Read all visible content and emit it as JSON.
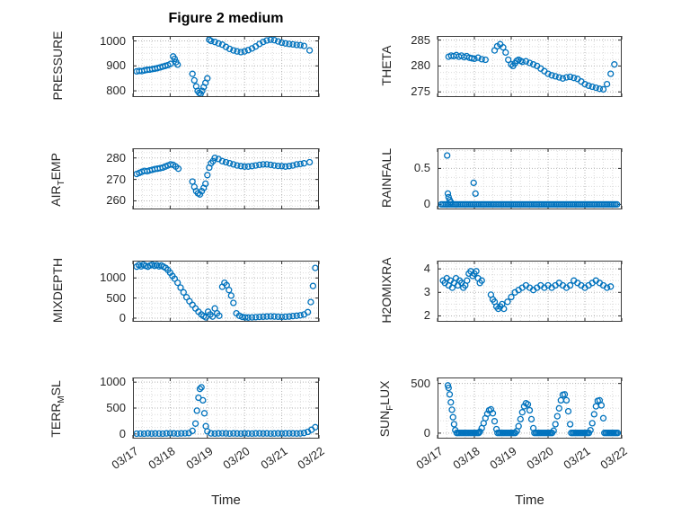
{
  "figure": {
    "title": "Figure 2 medium",
    "marker_color": "#0072BD"
  },
  "x_axis": {
    "label": "Time",
    "ticks": [
      "03/17",
      "03/18",
      "03/19",
      "03/20",
      "03/21",
      "03/22"
    ],
    "tick_values": [
      0,
      1,
      2,
      3,
      4,
      5
    ],
    "range": [
      0,
      5
    ]
  },
  "chart_data": [
    {
      "type": "scatter",
      "name": "pressure",
      "ylabel": "PRESSURE",
      "row": 0,
      "col": 0,
      "ylim": [
        775,
        1020
      ],
      "yticks": [
        800,
        900,
        1000
      ],
      "x": [
        0.1,
        0.17,
        0.24,
        0.31,
        0.38,
        0.45,
        0.52,
        0.59,
        0.66,
        0.73,
        0.8,
        0.87,
        0.94,
        1.01,
        1.08,
        1.12,
        1.16,
        1.2,
        1.6,
        1.65,
        1.7,
        1.74,
        1.78,
        1.82,
        1.86,
        1.9,
        1.95,
        2.0,
        2.05,
        2.1,
        2.2,
        2.3,
        2.4,
        2.5,
        2.6,
        2.7,
        2.8,
        2.9,
        3.0,
        3.1,
        3.2,
        3.3,
        3.4,
        3.5,
        3.6,
        3.7,
        3.8,
        3.9,
        4.0,
        4.1,
        4.2,
        4.3,
        4.4,
        4.5,
        4.6,
        4.75
      ],
      "y": [
        878,
        880,
        879,
        882,
        884,
        885,
        887,
        889,
        891,
        894,
        897,
        900,
        903,
        908,
        938,
        928,
        915,
        905,
        868,
        842,
        818,
        800,
        792,
        788,
        800,
        815,
        832,
        850,
        1005,
        1000,
        996,
        990,
        985,
        976,
        968,
        962,
        958,
        955,
        958,
        963,
        970,
        978,
        988,
        996,
        1002,
        1005,
        1003,
        998,
        993,
        990,
        988,
        986,
        984,
        983,
        980,
        962
      ]
    },
    {
      "type": "scatter",
      "name": "theta",
      "ylabel": "THETA",
      "row": 0,
      "col": 1,
      "ylim": [
        274,
        285.8
      ],
      "yticks": [
        275,
        280,
        285
      ],
      "x": [
        0.3,
        0.37,
        0.44,
        0.51,
        0.58,
        0.65,
        0.72,
        0.79,
        0.86,
        0.93,
        1.0,
        1.1,
        1.2,
        1.3,
        1.55,
        1.62,
        1.7,
        1.78,
        1.85,
        1.92,
        2.0,
        2.05,
        2.1,
        2.15,
        2.2,
        2.25,
        2.3,
        2.4,
        2.5,
        2.6,
        2.7,
        2.8,
        2.9,
        3.0,
        3.1,
        3.2,
        3.3,
        3.4,
        3.5,
        3.6,
        3.7,
        3.8,
        3.9,
        4.0,
        4.1,
        4.2,
        4.3,
        4.4,
        4.5,
        4.6,
        4.7,
        4.8
      ],
      "y": [
        281.8,
        282.0,
        281.9,
        282.1,
        281.8,
        282.0,
        281.7,
        281.9,
        281.6,
        281.5,
        281.4,
        281.6,
        281.3,
        281.2,
        283.0,
        283.8,
        284.2,
        283.6,
        282.6,
        281.2,
        280.3,
        280.0,
        280.5,
        281.0,
        281.2,
        281.0,
        280.8,
        280.9,
        280.6,
        280.3,
        280.0,
        279.5,
        279.0,
        278.5,
        278.2,
        278.0,
        277.8,
        277.6,
        277.8,
        277.9,
        277.7,
        277.5,
        277.0,
        276.5,
        276.2,
        276.0,
        275.8,
        275.6,
        275.5,
        276.5,
        278.5,
        280.3
      ]
    },
    {
      "type": "scatter",
      "name": "air_temp",
      "ylabel": "AIR_TEMP",
      "row": 1,
      "col": 0,
      "ylim": [
        256,
        284.5
      ],
      "yticks": [
        260,
        270,
        280
      ],
      "x": [
        0.1,
        0.17,
        0.24,
        0.31,
        0.38,
        0.45,
        0.52,
        0.59,
        0.66,
        0.73,
        0.8,
        0.87,
        0.94,
        1.01,
        1.08,
        1.15,
        1.22,
        1.6,
        1.65,
        1.7,
        1.75,
        1.8,
        1.85,
        1.9,
        1.95,
        2.0,
        2.05,
        2.1,
        2.15,
        2.2,
        2.3,
        2.4,
        2.5,
        2.6,
        2.7,
        2.8,
        2.9,
        3.0,
        3.1,
        3.2,
        3.3,
        3.4,
        3.5,
        3.6,
        3.7,
        3.8,
        3.9,
        4.0,
        4.1,
        4.2,
        4.3,
        4.4,
        4.5,
        4.6,
        4.75
      ],
      "y": [
        272.5,
        273.0,
        273.5,
        274.0,
        273.8,
        274.2,
        274.5,
        274.8,
        275.0,
        275.2,
        275.5,
        276.0,
        276.5,
        277.0,
        276.8,
        276.0,
        275.0,
        269.0,
        266.5,
        264.5,
        263.5,
        263.0,
        264.5,
        266.0,
        268.0,
        272.0,
        275.5,
        277.5,
        278.5,
        280.0,
        279.5,
        278.5,
        278.0,
        277.5,
        277.0,
        276.5,
        276.2,
        276.0,
        276.0,
        276.2,
        276.5,
        276.8,
        277.0,
        277.0,
        276.8,
        276.5,
        276.3,
        276.2,
        276.0,
        276.2,
        276.5,
        277.0,
        277.2,
        277.5,
        278.0
      ]
    },
    {
      "type": "scatter",
      "name": "rainfall",
      "ylabel": "RAINFALL",
      "row": 1,
      "col": 1,
      "ylim": [
        -0.07,
        0.78
      ],
      "yticks": [
        0,
        0.5
      ],
      "x": [
        0.26,
        0.28,
        0.3,
        0.33,
        0.36,
        0.98,
        1.03
      ],
      "y": [
        0.68,
        0.15,
        0.1,
        0.06,
        0.03,
        0.3,
        0.15
      ],
      "runs": [
        {
          "start": 0.1,
          "end": 4.9,
          "step": 0.045,
          "value": 0
        }
      ]
    },
    {
      "type": "scatter",
      "name": "mixdepth",
      "ylabel": "MIXDEPTH",
      "row": 2,
      "col": 0,
      "ylim": [
        -90,
        1430
      ],
      "yticks": [
        0,
        500,
        1000
      ],
      "x": [
        0.1,
        0.16,
        0.22,
        0.28,
        0.34,
        0.4,
        0.46,
        0.52,
        0.58,
        0.64,
        0.7,
        0.76,
        0.82,
        0.88,
        0.94,
        1.0,
        1.06,
        1.12,
        1.2,
        1.28,
        1.36,
        1.44,
        1.52,
        1.6,
        1.68,
        1.76,
        1.84,
        1.9,
        1.96,
        2.02,
        2.08,
        2.14,
        2.2,
        2.26,
        2.32,
        2.4,
        2.46,
        2.52,
        2.58,
        2.64,
        2.7,
        2.78,
        2.86,
        2.94,
        3.02,
        3.1,
        3.2,
        3.3,
        3.4,
        3.5,
        3.6,
        3.7,
        3.8,
        3.9,
        4.0,
        4.1,
        4.2,
        4.3,
        4.4,
        4.5,
        4.6,
        4.7,
        4.78,
        4.84,
        4.9
      ],
      "y": [
        1280,
        1320,
        1290,
        1330,
        1300,
        1280,
        1310,
        1330,
        1300,
        1320,
        1290,
        1310,
        1280,
        1250,
        1200,
        1130,
        1050,
        980,
        880,
        760,
        640,
        520,
        420,
        330,
        240,
        160,
        90,
        50,
        20,
        160,
        90,
        40,
        240,
        120,
        60,
        780,
        880,
        820,
        700,
        560,
        380,
        120,
        60,
        30,
        20,
        15,
        20,
        25,
        30,
        35,
        40,
        45,
        40,
        35,
        30,
        35,
        40,
        50,
        60,
        70,
        90,
        150,
        400,
        800,
        1250
      ]
    },
    {
      "type": "scatter",
      "name": "h2omixra",
      "ylabel": "H2OMIXRA",
      "row": 2,
      "col": 1,
      "ylim": [
        1.75,
        4.35
      ],
      "yticks": [
        2,
        3,
        4
      ],
      "x": [
        0.15,
        0.2,
        0.25,
        0.3,
        0.35,
        0.4,
        0.45,
        0.5,
        0.55,
        0.6,
        0.65,
        0.7,
        0.75,
        0.8,
        0.85,
        0.9,
        0.95,
        1.0,
        1.05,
        1.1,
        1.15,
        1.2,
        1.45,
        1.5,
        1.55,
        1.6,
        1.65,
        1.7,
        1.75,
        1.8,
        1.9,
        2.0,
        2.1,
        2.2,
        2.3,
        2.4,
        2.5,
        2.6,
        2.7,
        2.8,
        2.9,
        3.0,
        3.1,
        3.2,
        3.3,
        3.4,
        3.5,
        3.6,
        3.7,
        3.8,
        3.9,
        4.0,
        4.1,
        4.2,
        4.3,
        4.4,
        4.5,
        4.6,
        4.7
      ],
      "y": [
        3.5,
        3.4,
        3.6,
        3.3,
        3.5,
        3.2,
        3.4,
        3.6,
        3.3,
        3.5,
        3.4,
        3.2,
        3.3,
        3.5,
        3.8,
        3.9,
        3.7,
        3.8,
        3.9,
        3.6,
        3.4,
        3.5,
        2.9,
        2.7,
        2.6,
        2.4,
        2.3,
        2.4,
        2.5,
        2.3,
        2.6,
        2.8,
        3.0,
        3.1,
        3.2,
        3.3,
        3.2,
        3.1,
        3.2,
        3.3,
        3.2,
        3.3,
        3.2,
        3.3,
        3.4,
        3.3,
        3.2,
        3.3,
        3.5,
        3.4,
        3.3,
        3.2,
        3.3,
        3.4,
        3.5,
        3.4,
        3.3,
        3.2,
        3.25
      ]
    },
    {
      "type": "scatter",
      "name": "terr_msl",
      "ylabel": "TERR_MSL",
      "row": 3,
      "col": 0,
      "ylim": [
        -90,
        1090
      ],
      "yticks": [
        0,
        500,
        1000
      ],
      "x": [
        0.1,
        0.2,
        0.3,
        0.4,
        0.5,
        0.6,
        0.7,
        0.8,
        0.9,
        1.0,
        1.1,
        1.2,
        1.3,
        1.4,
        1.5,
        1.6,
        1.68,
        1.72,
        1.76,
        1.8,
        1.84,
        1.88,
        1.92,
        1.96,
        2.0,
        2.1,
        2.2,
        2.3,
        2.4,
        2.5,
        2.6,
        2.7,
        2.8,
        2.9,
        3.0,
        3.1,
        3.2,
        3.3,
        3.4,
        3.5,
        3.6,
        3.7,
        3.8,
        3.9,
        4.0,
        4.1,
        4.2,
        4.3,
        4.4,
        4.5,
        4.6,
        4.7,
        4.8,
        4.9
      ],
      "y": [
        5,
        8,
        6,
        10,
        7,
        9,
        8,
        6,
        10,
        12,
        10,
        8,
        10,
        12,
        15,
        60,
        200,
        450,
        700,
        870,
        900,
        650,
        400,
        150,
        50,
        10,
        8,
        10,
        12,
        10,
        8,
        10,
        9,
        8,
        10,
        9,
        8,
        10,
        11,
        9,
        10,
        8,
        9,
        10,
        9,
        10,
        11,
        10,
        9,
        10,
        20,
        40,
        80,
        130
      ]
    },
    {
      "type": "scatter",
      "name": "sun_flux",
      "ylabel": "SUN_FLUX",
      "row": 3,
      "col": 1,
      "ylim": [
        -55,
        560
      ],
      "yticks": [
        0,
        500
      ],
      "x": [
        0.28,
        0.3,
        0.33,
        0.36,
        0.39,
        0.42,
        0.45,
        0.48,
        1.15,
        1.2,
        1.25,
        1.3,
        1.35,
        1.4,
        1.45,
        1.5,
        1.55,
        1.6,
        2.15,
        2.2,
        2.25,
        2.3,
        2.35,
        2.4,
        2.45,
        2.5,
        2.55,
        2.6,
        3.15,
        3.2,
        3.25,
        3.3,
        3.35,
        3.4,
        3.45,
        3.5,
        3.55,
        3.6,
        4.15,
        4.2,
        4.25,
        4.3,
        4.35,
        4.4,
        4.45,
        4.5
      ],
      "y": [
        480,
        455,
        390,
        310,
        235,
        160,
        90,
        30,
        15,
        50,
        100,
        150,
        195,
        230,
        240,
        200,
        120,
        40,
        20,
        70,
        140,
        210,
        270,
        300,
        290,
        230,
        140,
        50,
        25,
        90,
        170,
        250,
        330,
        385,
        390,
        330,
        220,
        90,
        30,
        100,
        190,
        270,
        325,
        330,
        280,
        150
      ],
      "runs": [
        {
          "start": 0.52,
          "end": 1.12,
          "step": 0.04,
          "value": 2
        },
        {
          "start": 1.63,
          "end": 2.12,
          "step": 0.04,
          "value": 2
        },
        {
          "start": 2.63,
          "end": 3.12,
          "step": 0.04,
          "value": 2
        },
        {
          "start": 3.63,
          "end": 4.12,
          "step": 0.04,
          "value": 2
        },
        {
          "start": 4.53,
          "end": 4.9,
          "step": 0.04,
          "value": 2
        }
      ]
    }
  ]
}
